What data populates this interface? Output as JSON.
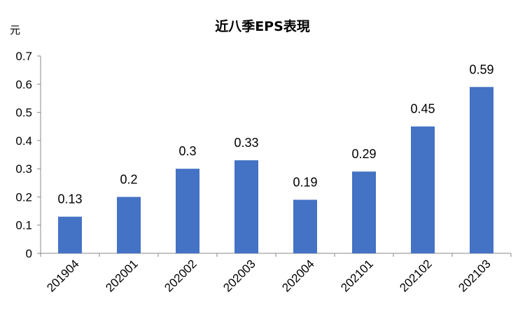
{
  "chart_data": {
    "type": "bar",
    "title": "近八季EPS表現",
    "ylabel": "元",
    "xlabel": "",
    "categories": [
      "201904",
      "202001",
      "202002",
      "202003",
      "202004",
      "202101",
      "202102",
      "202103"
    ],
    "values": [
      0.13,
      0.2,
      0.3,
      0.33,
      0.19,
      0.29,
      0.45,
      0.59
    ],
    "value_labels": [
      "0.13",
      "0.2",
      "0.3",
      "0.33",
      "0.19",
      "0.29",
      "0.45",
      "0.59"
    ],
    "ylim": [
      0,
      0.7
    ],
    "yticks": [
      "0",
      "0.1",
      "0.2",
      "0.3",
      "0.4",
      "0.5",
      "0.6",
      "0.7"
    ],
    "grid": false,
    "legend": "none",
    "bar_color": "#4472c4"
  }
}
